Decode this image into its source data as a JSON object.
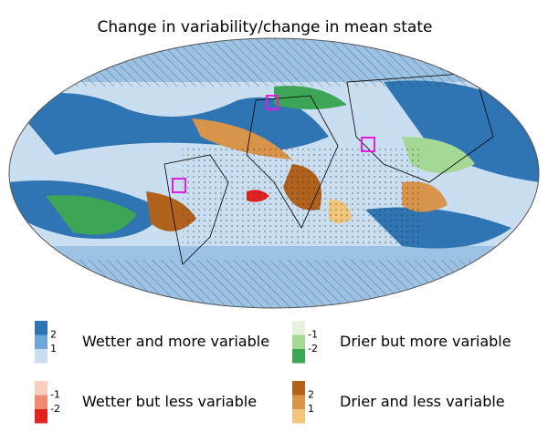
{
  "title": "Change in variability/change in mean state",
  "legend": [
    {
      "label": "Wetter and more variable",
      "colors": [
        "#2f74b3",
        "#6ea6d5",
        "#c9def0"
      ],
      "levels": [
        2,
        1
      ]
    },
    {
      "label": "Drier but more variable",
      "colors": [
        "#e6f3df",
        "#a5d795",
        "#3ca556"
      ],
      "levels": [
        -1,
        -2
      ]
    },
    {
      "label": "Wetter but less variable",
      "colors": [
        "#f9cfc2",
        "#f08b73",
        "#e0231f"
      ],
      "levels": [
        -1,
        -2
      ]
    },
    {
      "label": "Drier and less variable",
      "colors": [
        "#b0621d",
        "#d8944a",
        "#f2c57c"
      ],
      "levels": [
        2,
        1
      ]
    }
  ]
}
